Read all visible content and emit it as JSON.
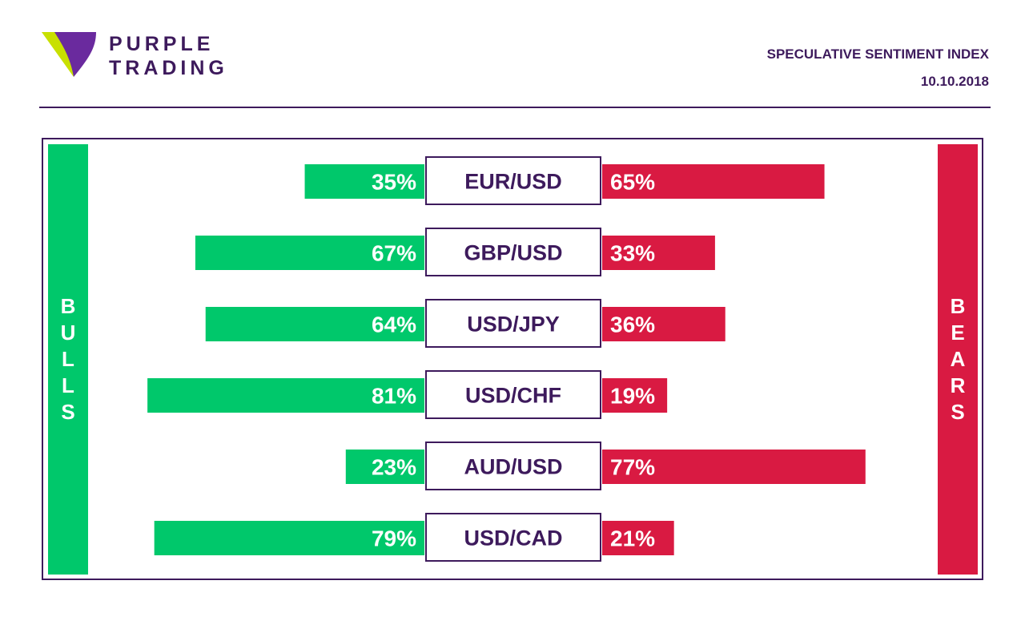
{
  "brand": {
    "line1": "PURPLE",
    "line2": "TRADING",
    "logo_icon": "purple-triangle-logo-icon"
  },
  "header": {
    "title": "SPECULATIVE SENTIMENT INDEX",
    "date": "10.10.2018"
  },
  "colors": {
    "primary": "#3d1a5c",
    "bulls": "#00c86b",
    "bears": "#d91a42",
    "logo_green": "#c8e000"
  },
  "sides": {
    "bulls": [
      "B",
      "U",
      "L",
      "L",
      "S"
    ],
    "bears": [
      "B",
      "E",
      "A",
      "R",
      "S"
    ]
  },
  "chart_data": {
    "type": "bar",
    "title": "SPECULATIVE SENTIMENT INDEX",
    "categories": [
      "EUR/USD",
      "GBP/USD",
      "USD/JPY",
      "USD/CHF",
      "AUD/USD",
      "USD/CAD"
    ],
    "series": [
      {
        "name": "BULLS",
        "values": [
          35,
          67,
          64,
          81,
          23,
          79
        ],
        "labels": [
          "35%",
          "67%",
          "64%",
          "81%",
          "23%",
          "79%"
        ]
      },
      {
        "name": "BEARS",
        "values": [
          65,
          33,
          36,
          19,
          77,
          21
        ],
        "labels": [
          "65%",
          "33%",
          "36%",
          "19%",
          "77%",
          "21%"
        ]
      }
    ],
    "unit": "%",
    "ylim": [
      0,
      100
    ]
  }
}
